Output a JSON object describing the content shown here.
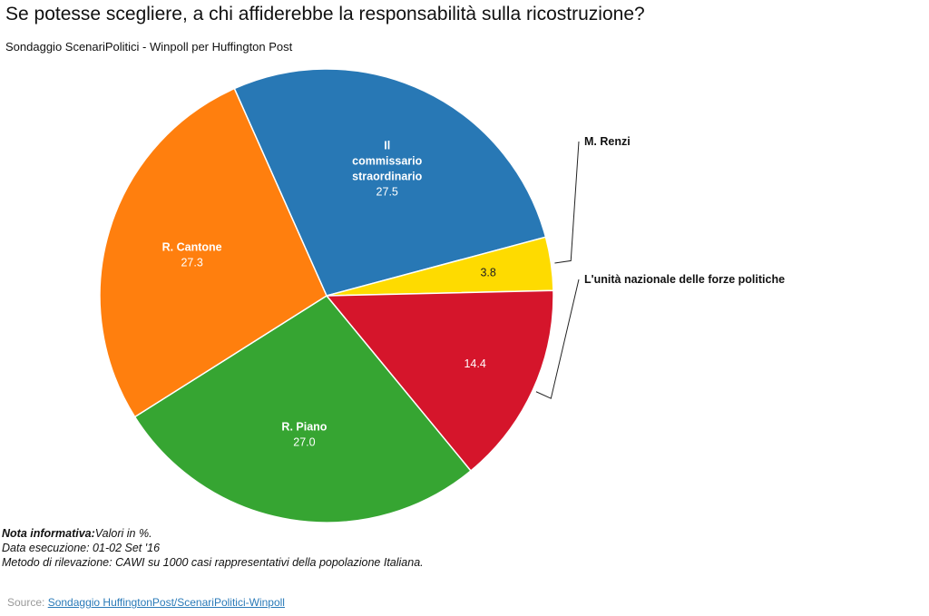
{
  "title": "Se potesse scegliere, a chi affiderebbe la responsabilità sulla ricostruzione?",
  "subtitle": "Sondaggio ScenariPolitici - Winpoll per Huffington Post",
  "chart_data": {
    "type": "pie",
    "title": "Se potesse scegliere, a chi affiderebbe la responsabilità sulla ricostruzione?",
    "subtitle": "Sondaggio ScenariPolitici - Winpoll per Huffington Post",
    "start_angle_deg": -24,
    "slices": [
      {
        "label_lines": [
          "Il",
          "commissario",
          "straordinario"
        ],
        "value": 27.5,
        "value_text": "27.5",
        "color": "#2878b5",
        "label_position": "inside"
      },
      {
        "label_lines": [
          "M. Renzi"
        ],
        "value": 3.8,
        "value_text": "3.8",
        "color": "#fedb00",
        "label_position": "outside"
      },
      {
        "label_lines": [
          "L'unità nazionale delle forze politiche"
        ],
        "value": 14.4,
        "value_text": "14.4",
        "color": "#d5152b",
        "label_position": "outside"
      },
      {
        "label_lines": [
          "R. Piano"
        ],
        "value": 27.0,
        "value_text": "27.0",
        "color": "#36a532",
        "label_position": "inside"
      },
      {
        "label_lines": [
          "R. Cantone"
        ],
        "value": 27.3,
        "value_text": "27.3",
        "color": "#ff7f0e",
        "label_position": "inside"
      }
    ]
  },
  "notes": {
    "label": "Nota informativa:",
    "line1": "Valori in %.",
    "line2": "Data esecuzione: 01-02 Set '16",
    "line3": "Metodo di rilevazione: CAWI su 1000 casi rappresentativi della popolazione Italiana."
  },
  "source": {
    "prefix": "Source: ",
    "link_text": "Sondaggio HuffingtonPost/ScenariPolitici-Winpoll"
  }
}
